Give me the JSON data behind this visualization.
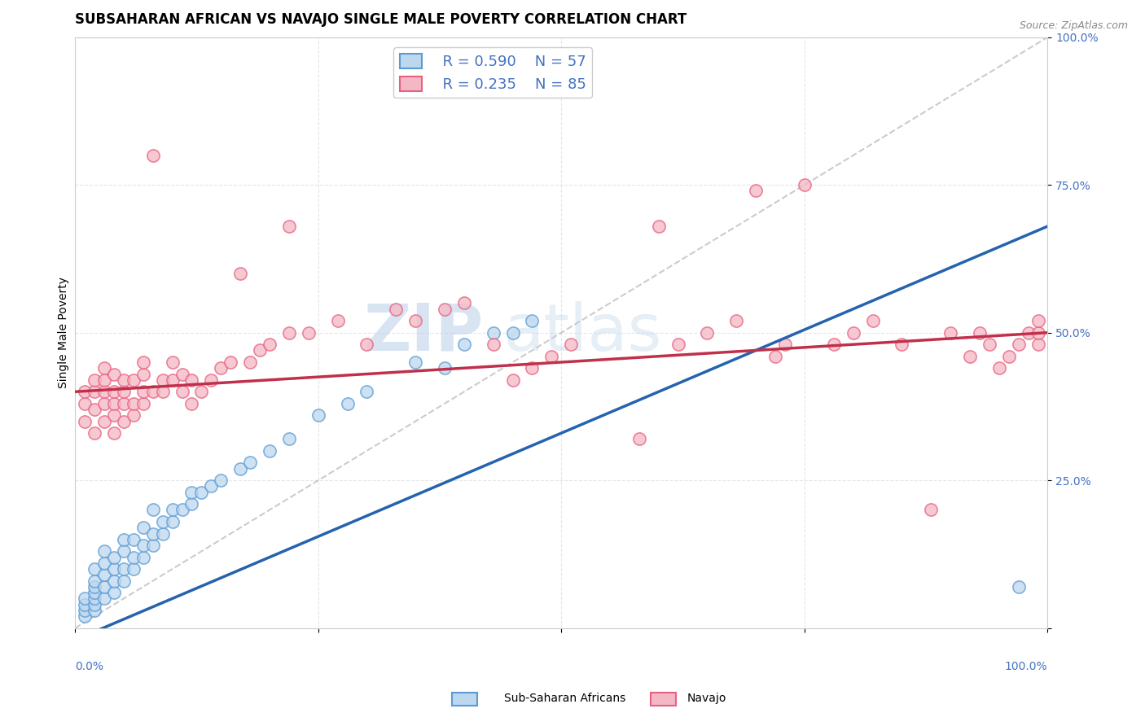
{
  "title": "SUBSAHARAN AFRICAN VS NAVAJO SINGLE MALE POVERTY CORRELATION CHART",
  "source": "Source: ZipAtlas.com",
  "ylabel": "Single Male Poverty",
  "xlim": [
    0.0,
    1.0
  ],
  "ylim": [
    0.0,
    1.0
  ],
  "watermark_zip": "ZIP",
  "watermark_atlas": "atlas",
  "legend_r1": "R = 0.590",
  "legend_n1": "N = 57",
  "legend_r2": "R = 0.235",
  "legend_n2": "N = 85",
  "blue_color": "#5b9bd5",
  "pink_color": "#e86080",
  "blue_fill": "#bdd7ee",
  "pink_fill": "#f4b8c4",
  "blue_line_color": "#2563ae",
  "pink_line_color": "#c0304a",
  "blue_scatter": [
    [
      0.01,
      0.02
    ],
    [
      0.01,
      0.03
    ],
    [
      0.01,
      0.04
    ],
    [
      0.01,
      0.05
    ],
    [
      0.02,
      0.03
    ],
    [
      0.02,
      0.04
    ],
    [
      0.02,
      0.05
    ],
    [
      0.02,
      0.06
    ],
    [
      0.02,
      0.07
    ],
    [
      0.02,
      0.08
    ],
    [
      0.02,
      0.1
    ],
    [
      0.03,
      0.05
    ],
    [
      0.03,
      0.07
    ],
    [
      0.03,
      0.09
    ],
    [
      0.03,
      0.11
    ],
    [
      0.03,
      0.13
    ],
    [
      0.04,
      0.06
    ],
    [
      0.04,
      0.08
    ],
    [
      0.04,
      0.1
    ],
    [
      0.04,
      0.12
    ],
    [
      0.05,
      0.08
    ],
    [
      0.05,
      0.1
    ],
    [
      0.05,
      0.13
    ],
    [
      0.05,
      0.15
    ],
    [
      0.06,
      0.1
    ],
    [
      0.06,
      0.12
    ],
    [
      0.06,
      0.15
    ],
    [
      0.07,
      0.12
    ],
    [
      0.07,
      0.14
    ],
    [
      0.07,
      0.17
    ],
    [
      0.08,
      0.14
    ],
    [
      0.08,
      0.16
    ],
    [
      0.08,
      0.2
    ],
    [
      0.09,
      0.16
    ],
    [
      0.09,
      0.18
    ],
    [
      0.1,
      0.18
    ],
    [
      0.1,
      0.2
    ],
    [
      0.11,
      0.2
    ],
    [
      0.12,
      0.21
    ],
    [
      0.12,
      0.23
    ],
    [
      0.13,
      0.23
    ],
    [
      0.14,
      0.24
    ],
    [
      0.15,
      0.25
    ],
    [
      0.17,
      0.27
    ],
    [
      0.18,
      0.28
    ],
    [
      0.2,
      0.3
    ],
    [
      0.22,
      0.32
    ],
    [
      0.25,
      0.36
    ],
    [
      0.28,
      0.38
    ],
    [
      0.3,
      0.4
    ],
    [
      0.35,
      0.45
    ],
    [
      0.38,
      0.44
    ],
    [
      0.4,
      0.48
    ],
    [
      0.43,
      0.5
    ],
    [
      0.45,
      0.5
    ],
    [
      0.47,
      0.52
    ],
    [
      0.97,
      0.07
    ]
  ],
  "pink_scatter": [
    [
      0.01,
      0.35
    ],
    [
      0.01,
      0.38
    ],
    [
      0.01,
      0.4
    ],
    [
      0.02,
      0.33
    ],
    [
      0.02,
      0.37
    ],
    [
      0.02,
      0.4
    ],
    [
      0.02,
      0.42
    ],
    [
      0.03,
      0.35
    ],
    [
      0.03,
      0.38
    ],
    [
      0.03,
      0.4
    ],
    [
      0.03,
      0.42
    ],
    [
      0.03,
      0.44
    ],
    [
      0.04,
      0.33
    ],
    [
      0.04,
      0.36
    ],
    [
      0.04,
      0.38
    ],
    [
      0.04,
      0.4
    ],
    [
      0.04,
      0.43
    ],
    [
      0.05,
      0.35
    ],
    [
      0.05,
      0.38
    ],
    [
      0.05,
      0.4
    ],
    [
      0.05,
      0.42
    ],
    [
      0.06,
      0.36
    ],
    [
      0.06,
      0.38
    ],
    [
      0.06,
      0.42
    ],
    [
      0.07,
      0.38
    ],
    [
      0.07,
      0.4
    ],
    [
      0.07,
      0.43
    ],
    [
      0.07,
      0.45
    ],
    [
      0.08,
      0.4
    ],
    [
      0.08,
      0.8
    ],
    [
      0.09,
      0.4
    ],
    [
      0.09,
      0.42
    ],
    [
      0.1,
      0.42
    ],
    [
      0.1,
      0.45
    ],
    [
      0.11,
      0.4
    ],
    [
      0.11,
      0.43
    ],
    [
      0.12,
      0.38
    ],
    [
      0.12,
      0.42
    ],
    [
      0.13,
      0.4
    ],
    [
      0.14,
      0.42
    ],
    [
      0.15,
      0.44
    ],
    [
      0.16,
      0.45
    ],
    [
      0.17,
      0.6
    ],
    [
      0.18,
      0.45
    ],
    [
      0.19,
      0.47
    ],
    [
      0.2,
      0.48
    ],
    [
      0.22,
      0.5
    ],
    [
      0.22,
      0.68
    ],
    [
      0.24,
      0.5
    ],
    [
      0.27,
      0.52
    ],
    [
      0.3,
      0.48
    ],
    [
      0.33,
      0.54
    ],
    [
      0.35,
      0.52
    ],
    [
      0.38,
      0.54
    ],
    [
      0.4,
      0.55
    ],
    [
      0.43,
      0.48
    ],
    [
      0.45,
      0.42
    ],
    [
      0.47,
      0.44
    ],
    [
      0.49,
      0.46
    ],
    [
      0.51,
      0.48
    ],
    [
      0.58,
      0.32
    ],
    [
      0.6,
      0.68
    ],
    [
      0.62,
      0.48
    ],
    [
      0.65,
      0.5
    ],
    [
      0.68,
      0.52
    ],
    [
      0.7,
      0.74
    ],
    [
      0.72,
      0.46
    ],
    [
      0.73,
      0.48
    ],
    [
      0.75,
      0.75
    ],
    [
      0.78,
      0.48
    ],
    [
      0.8,
      0.5
    ],
    [
      0.82,
      0.52
    ],
    [
      0.85,
      0.48
    ],
    [
      0.88,
      0.2
    ],
    [
      0.9,
      0.5
    ],
    [
      0.92,
      0.46
    ],
    [
      0.93,
      0.5
    ],
    [
      0.94,
      0.48
    ],
    [
      0.95,
      0.44
    ],
    [
      0.96,
      0.46
    ],
    [
      0.97,
      0.48
    ],
    [
      0.98,
      0.5
    ],
    [
      0.99,
      0.48
    ],
    [
      0.99,
      0.5
    ],
    [
      0.99,
      0.52
    ]
  ],
  "blue_reg": [
    0.0,
    -0.02,
    1.0,
    0.68
  ],
  "pink_reg": [
    0.0,
    0.4,
    1.0,
    0.5
  ],
  "diag_line_color": "#aaaaaa",
  "grid_color": "#e0e0e0",
  "title_fontsize": 12,
  "axis_fontsize": 10,
  "tick_fontsize": 10
}
